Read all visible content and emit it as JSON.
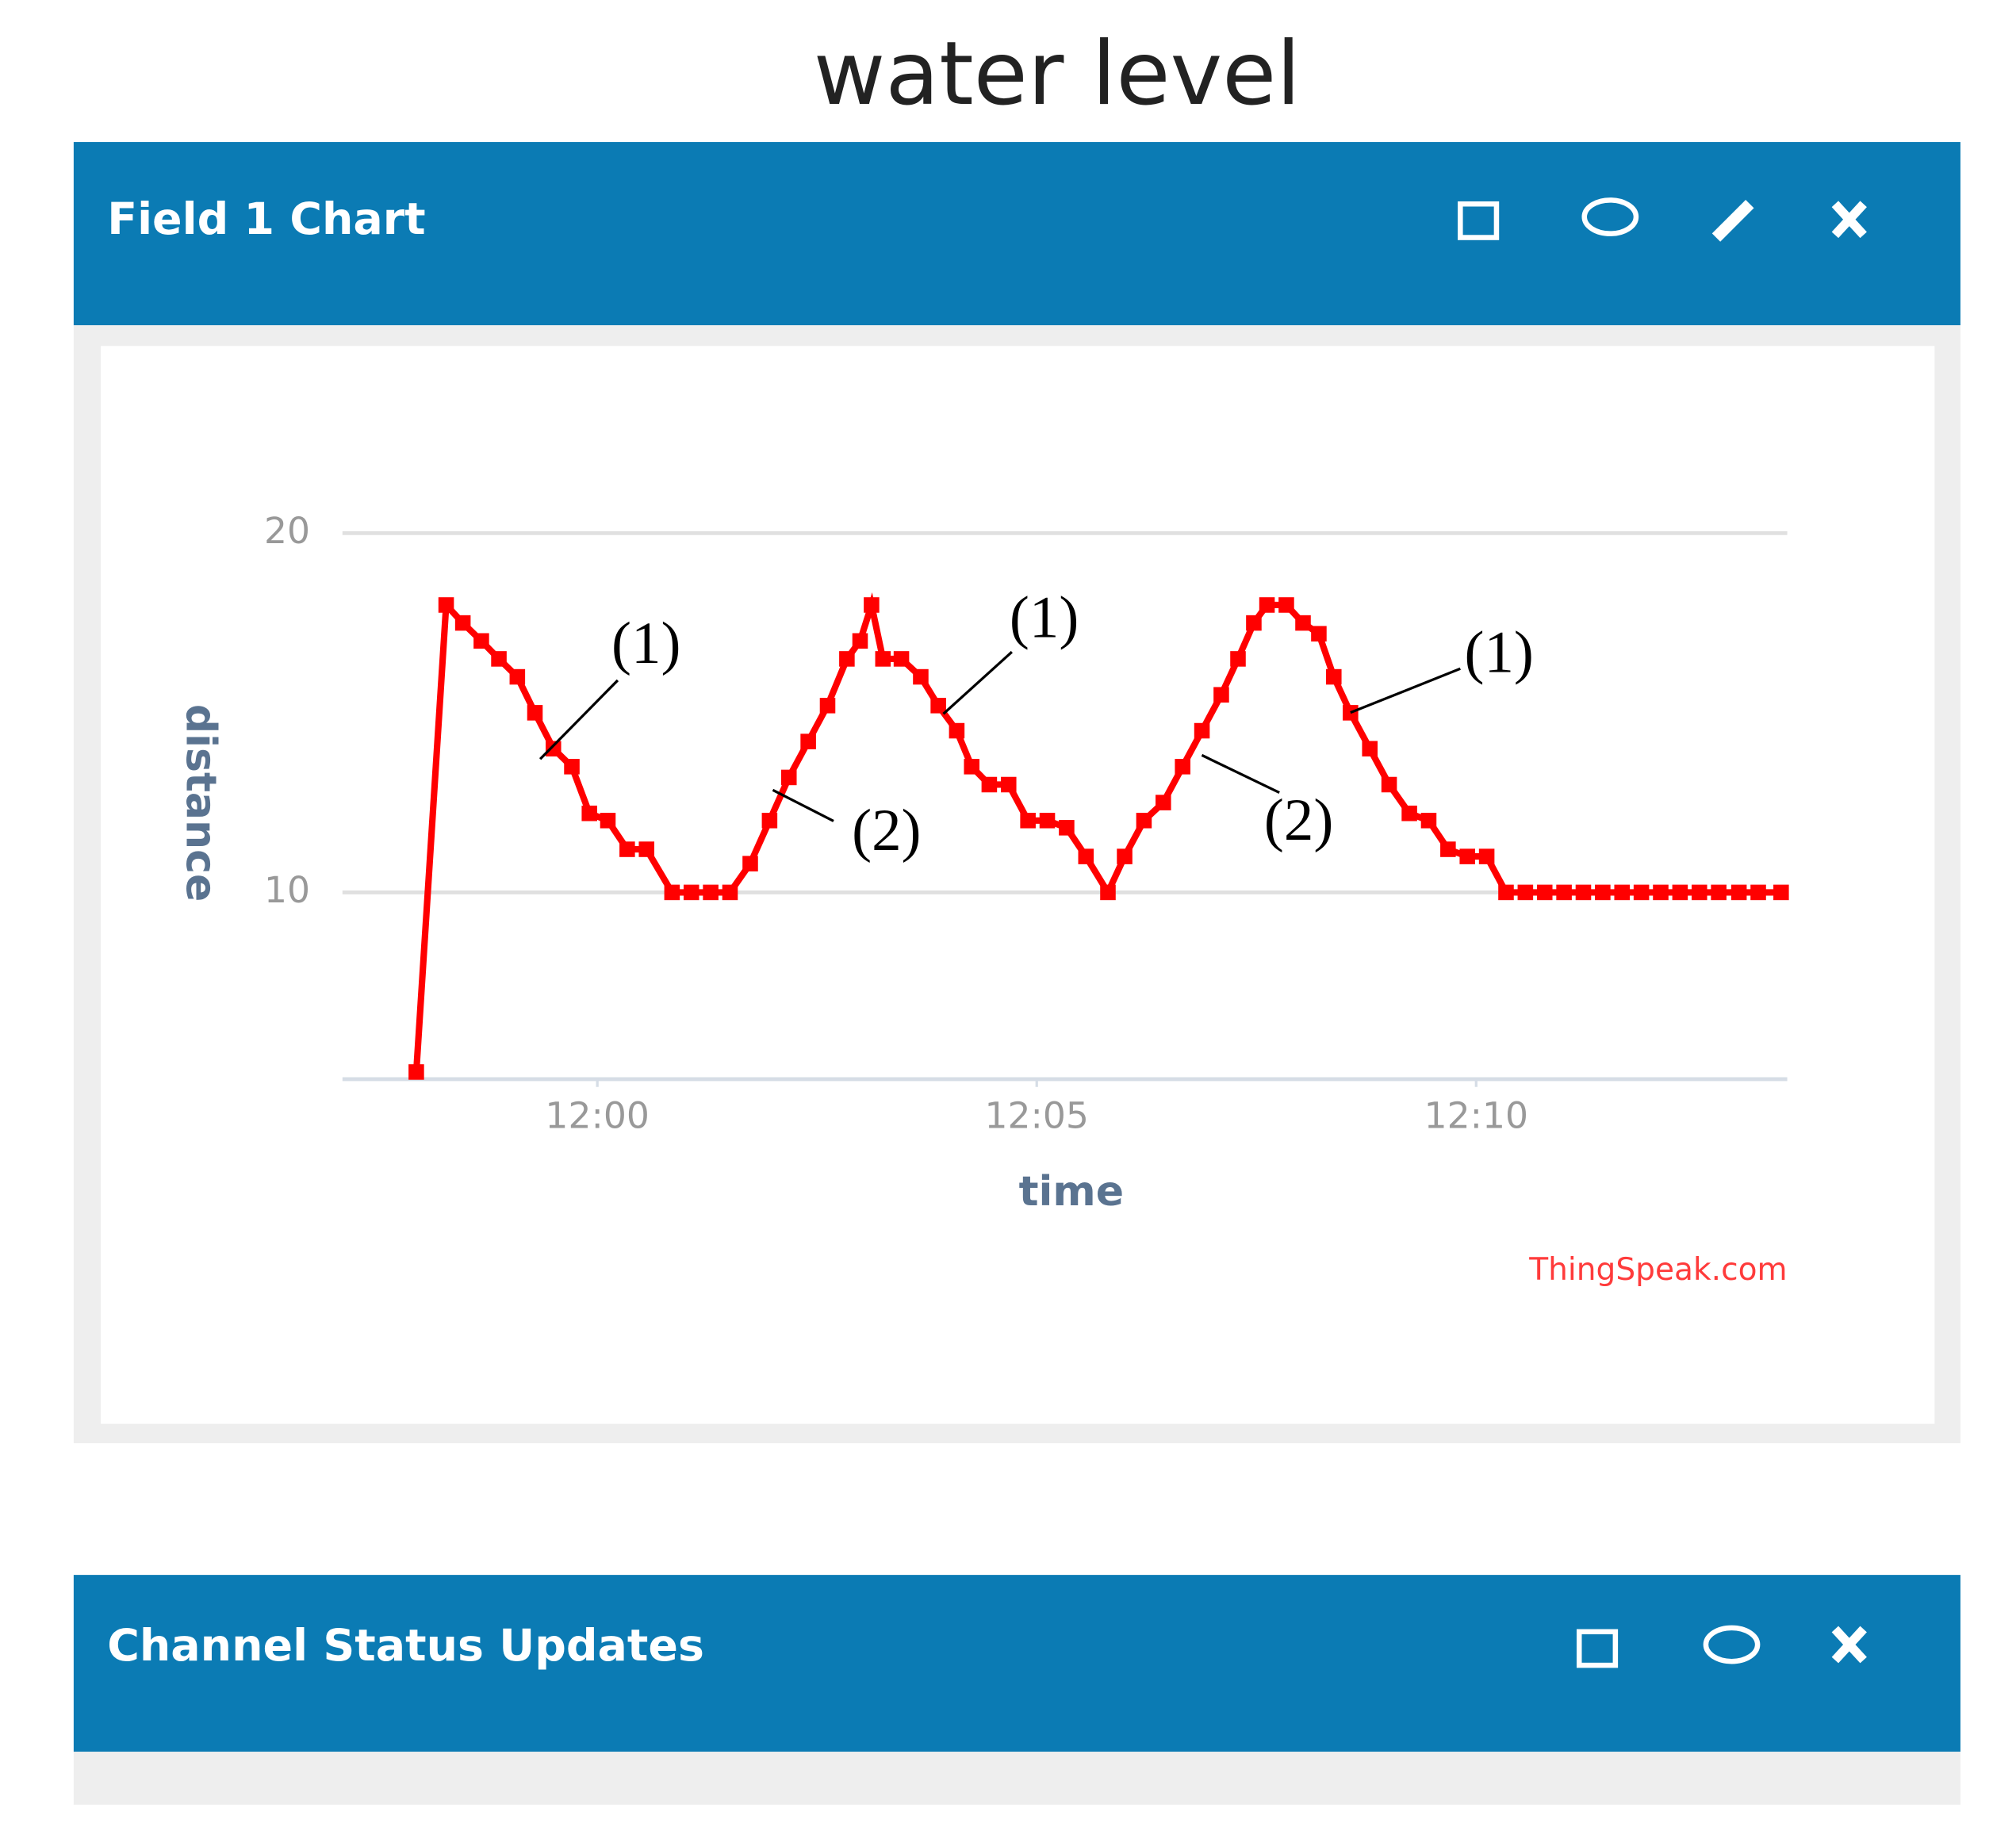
{
  "page_title": "water level",
  "panels": [
    {
      "title": "Field 1 Chart"
    },
    {
      "title": "Channel Status Updates"
    }
  ],
  "chart_data": {
    "type": "line",
    "xlabel": "time",
    "ylabel": "distance",
    "credit": "ThingSpeak.com",
    "x": [
      717.94,
      718.28,
      718.47,
      718.68,
      718.88,
      719.09,
      719.29,
      719.5,
      719.71,
      719.91,
      720.12,
      720.34,
      720.56,
      720.85,
      721.07,
      721.29,
      721.51,
      721.74,
      721.96,
      722.18,
      722.4,
      722.62,
      722.84,
      722.99,
      723.12,
      723.25,
      723.46,
      723.68,
      723.88,
      724.09,
      724.26,
      724.46,
      724.68,
      724.9,
      725.12,
      725.34,
      725.56,
      725.81,
      726,
      726.22,
      726.44,
      726.66,
      726.88,
      727.1,
      727.29,
      727.47,
      727.62,
      727.84,
      728.03,
      728.21,
      728.38,
      728.57,
      728.79,
      729.01,
      729.24,
      729.46,
      729.68,
      729.9,
      730.12,
      730.34,
      730.56,
      730.78,
      731,
      731.22,
      731.44,
      731.66,
      731.88,
      732.1,
      732.32,
      732.54,
      732.76,
      732.99,
      733.21,
      733.47
    ],
    "series": [
      {
        "name": "distance",
        "color": "#ff0000",
        "values": [
          5,
          18,
          17.5,
          17,
          16.5,
          16,
          15,
          14,
          13.5,
          12.2,
          12,
          11.2,
          11.2,
          10,
          10,
          10,
          10,
          10.8,
          12,
          13.2,
          14.2,
          15.2,
          16.5,
          17,
          18,
          16.5,
          16.5,
          16,
          15.2,
          14.5,
          13.5,
          13,
          13,
          12,
          12,
          11.8,
          11,
          10,
          11,
          12,
          12.5,
          13.5,
          14.5,
          15.5,
          16.5,
          17.5,
          18,
          18,
          17.5,
          17.2,
          16,
          15,
          14,
          13,
          12.2,
          12,
          11.2,
          11,
          11,
          10,
          10,
          10,
          10,
          10,
          10,
          10,
          10,
          10,
          10,
          10,
          10,
          10,
          10,
          10
        ]
      }
    ],
    "xlim": [
      717.1,
      733.54
    ],
    "xticks": [
      {
        "value": 720,
        "label": "12:00"
      },
      {
        "value": 725,
        "label": "12:05"
      },
      {
        "value": 730,
        "label": "12:10"
      }
    ],
    "ylim": [
      4.8,
      20
    ],
    "yticks": [
      10,
      20
    ],
    "grid": true,
    "annotations": [
      "(1)",
      "(1)",
      "(1)",
      "(2)",
      "(2)"
    ]
  }
}
